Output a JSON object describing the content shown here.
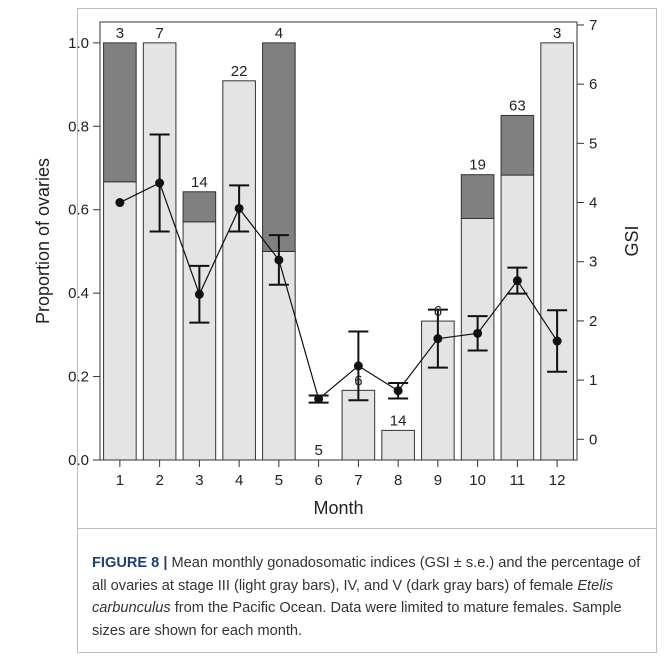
{
  "chart_data": {
    "type": "bar",
    "xlabel": "Month",
    "ylabel_left": "Proportion of ovaries",
    "ylabel_right": "GSI",
    "categories": [
      "1",
      "2",
      "3",
      "4",
      "5",
      "6",
      "7",
      "8",
      "9",
      "10",
      "11",
      "12"
    ],
    "ylim_left": [
      0,
      1.05
    ],
    "yticks_left": [
      "0.0",
      "0.2",
      "0.4",
      "0.6",
      "0.8",
      "1.0"
    ],
    "ylim_right": [
      -0.35,
      7.05
    ],
    "yticks_right": [
      "0",
      "1",
      "2",
      "3",
      "4",
      "5",
      "6",
      "7"
    ],
    "series": [
      {
        "values": [
          0.667,
          1.0,
          0.571,
          0.909,
          0.5,
          0.0,
          0.167,
          0.071,
          0.333,
          0.579,
          0.683,
          1.0
        ],
        "color": "#e4e4e4"
      },
      {
        "values": [
          0.333,
          0.0,
          0.072,
          0.0,
          0.5,
          0.0,
          0.0,
          0.0,
          0.0,
          0.105,
          0.143,
          0.0
        ],
        "color": "#808080"
      }
    ],
    "sample_sizes": [
      "3",
      "7",
      "14",
      "22",
      "4",
      "5",
      "6",
      "14",
      "6",
      "19",
      "63",
      "3"
    ],
    "gsi": {
      "mean": [
        4.0,
        4.33,
        2.45,
        3.9,
        3.03,
        0.68,
        1.24,
        0.82,
        1.7,
        1.79,
        2.68,
        1.66
      ],
      "se": [
        0.0,
        0.82,
        0.48,
        0.39,
        0.42,
        0.06,
        0.58,
        0.13,
        0.49,
        0.29,
        0.22,
        0.52
      ]
    }
  },
  "caption": {
    "fig_label": "FIGURE 8 |",
    "text_1": " Mean monthly gonadosomatic indices (GSI ± s.e.) and the percentage of all ovaries at stage III (light gray bars), IV, and V (dark gray bars) of female ",
    "species": "Etelis carbunculus",
    "text_2": " from the Pacific Ocean. Data were limited to mature females. Sample sizes are shown for each month."
  }
}
